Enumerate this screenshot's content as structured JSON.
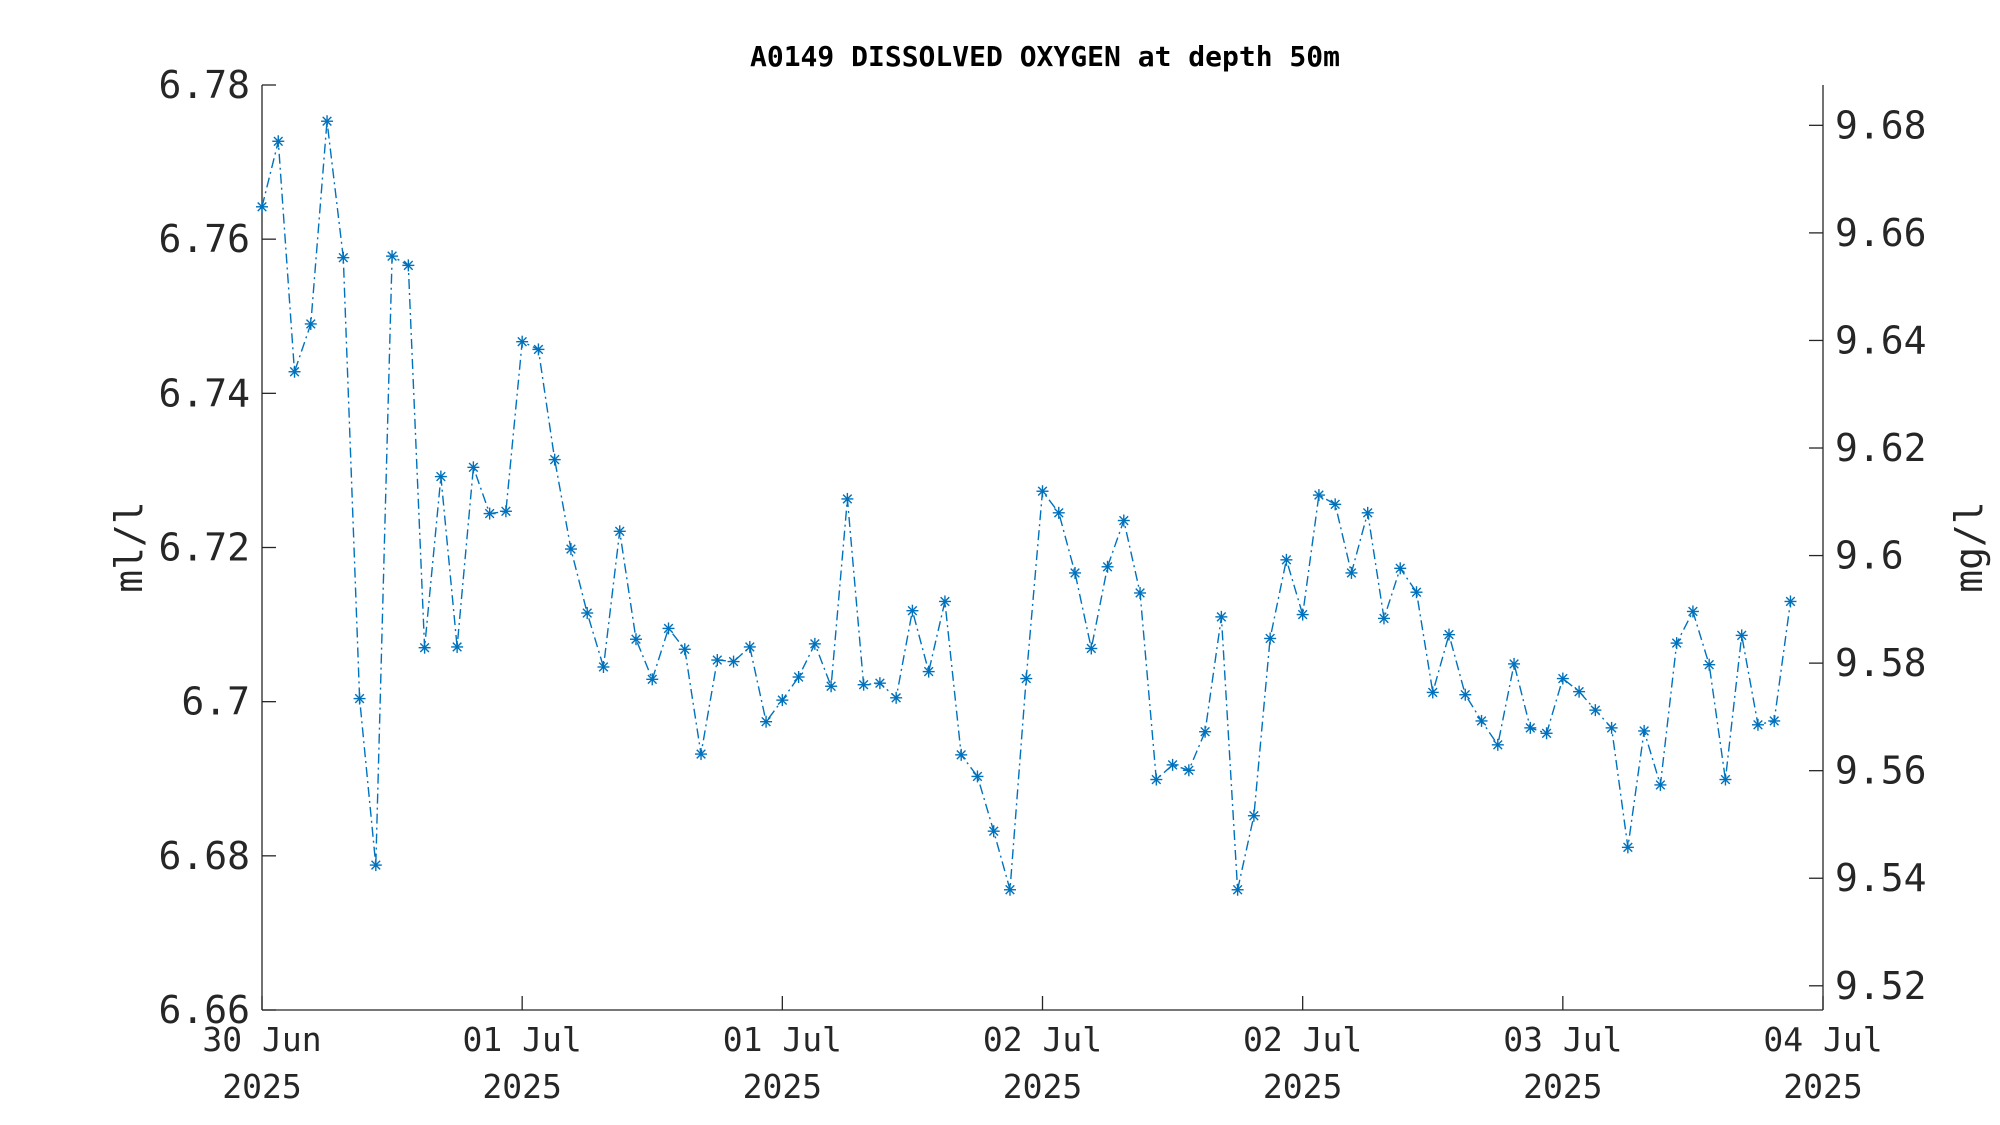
{
  "chart_data": {
    "type": "line",
    "title": "A0149 DISSOLVED OXYGEN at depth 50m",
    "ylabel_left": "ml/l",
    "ylabel_right": "mg/l",
    "ylim_left": [
      6.66,
      6.78
    ],
    "ylim_right": [
      9.5155,
      9.6875
    ],
    "yticks_left": [
      "6.66",
      "6.68",
      "6.7",
      "6.72",
      "6.74",
      "6.76",
      "6.78"
    ],
    "yticks_right": [
      "9.52",
      "9.54",
      "9.56",
      "9.58",
      "9.6",
      "9.62",
      "9.64",
      "9.66",
      "9.68"
    ],
    "xticks": [
      {
        "day": "30 Jun",
        "year": "2025"
      },
      {
        "day": "01 Jul",
        "year": "2025"
      },
      {
        "day": "01 Jul",
        "year": "2025"
      },
      {
        "day": "02 Jul",
        "year": "2025"
      },
      {
        "day": "02 Jul",
        "year": "2025"
      },
      {
        "day": "03 Jul",
        "year": "2025"
      },
      {
        "day": "04 Jul",
        "year": "2025"
      }
    ],
    "x_hours_since_first_tick_range": [
      0,
      96
    ],
    "sample_interval_hours": 1,
    "grid": false,
    "series": [
      {
        "color": "#0072BD",
        "line_style": "dash-dot",
        "marker": "asterisk",
        "values": [
          6.7642,
          6.7727,
          6.7428,
          6.749,
          6.7753,
          6.7576,
          6.7004,
          6.6788,
          6.7578,
          6.7566,
          6.707,
          6.7292,
          6.7071,
          6.7304,
          6.7244,
          6.7247,
          6.7467,
          6.7457,
          6.7314,
          6.7198,
          6.7115,
          6.7045,
          6.7221,
          6.7081,
          6.7029,
          6.7095,
          6.7068,
          6.6932,
          6.7054,
          6.7052,
          6.7071,
          6.6974,
          6.7002,
          6.7032,
          6.7075,
          6.702,
          6.7263,
          6.7022,
          6.7024,
          6.7005,
          6.7118,
          6.7039,
          6.713,
          6.6931,
          6.6903,
          6.6832,
          6.6756,
          6.703,
          6.7273,
          6.7245,
          6.7167,
          6.7069,
          6.7175,
          6.7235,
          6.7141,
          6.6899,
          6.6918,
          6.6911,
          6.6961,
          6.711,
          6.6756,
          6.6852,
          6.7082,
          6.7184,
          6.7113,
          6.7268,
          6.7256,
          6.7167,
          6.7245,
          6.7108,
          6.7173,
          6.7142,
          6.7012,
          6.7087,
          6.7009,
          6.6975,
          6.6944,
          6.7049,
          6.6966,
          6.6959,
          6.703,
          6.7013,
          6.6989,
          6.6966,
          6.6811,
          6.6962,
          6.6892,
          6.7076,
          6.7117,
          6.7048,
          6.6899,
          6.7086,
          6.697,
          6.6975,
          6.713
        ]
      }
    ]
  }
}
